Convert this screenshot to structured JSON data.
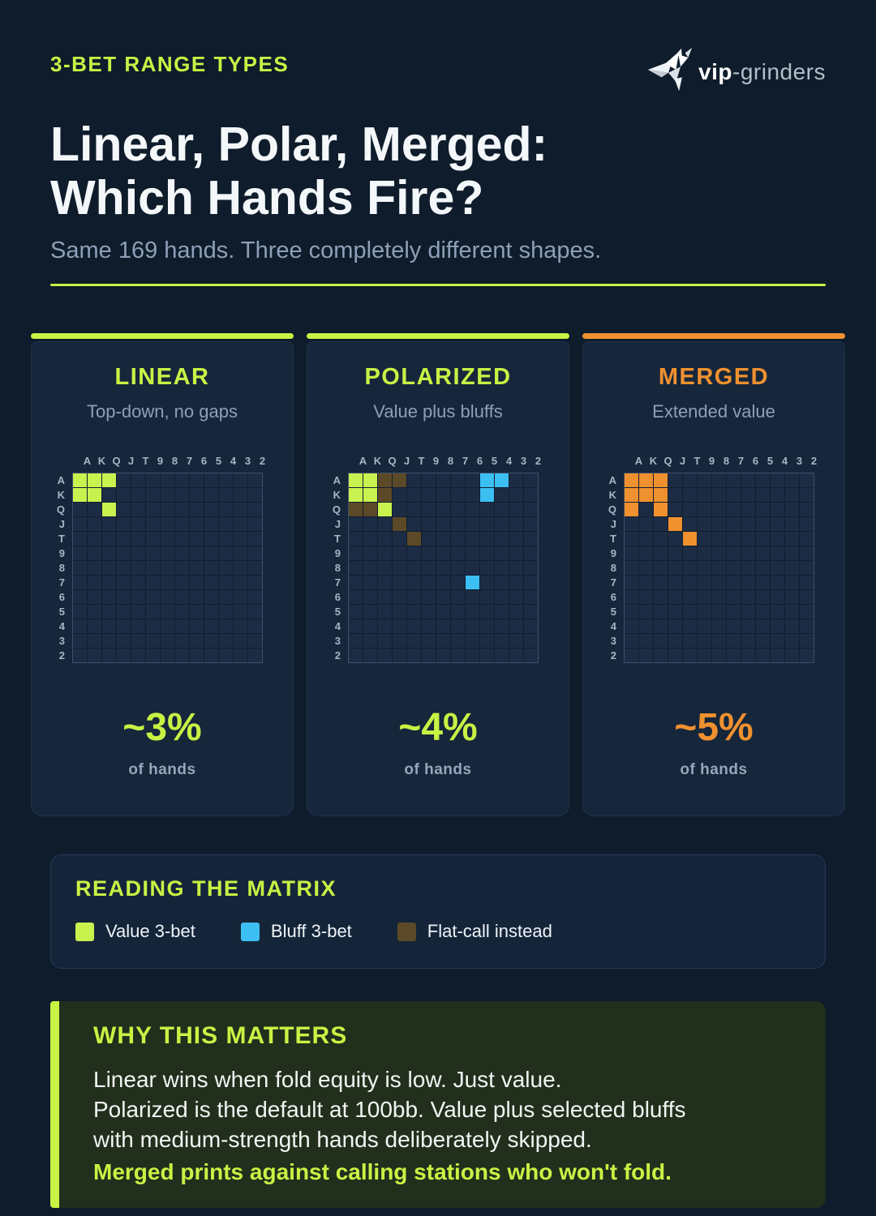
{
  "header": {
    "eyebrow": "3-BET RANGE TYPES",
    "title_line1": "Linear, Polar, Merged:",
    "title_line2": "Which Hands Fire?",
    "subtitle": "Same 169 hands. Three completely different shapes.",
    "logo_bold": "vip",
    "logo_light": "-grinders"
  },
  "colors": {
    "background": "#0e1c2b",
    "card_background": "#16263b",
    "accent_green": "#c8f244",
    "accent_orange": "#f0912f",
    "bluff_blue": "#3cc0f3",
    "call_brown": "#5c4927",
    "empty_cell": "#1d2c45",
    "subtitle_gray": "#8da0b6",
    "why_background": "#212f1c"
  },
  "ranks": [
    "A",
    "K",
    "Q",
    "J",
    "T",
    "9",
    "8",
    "7",
    "6",
    "5",
    "4",
    "3",
    "2"
  ],
  "cards": [
    {
      "title": "LINEAR",
      "subtitle": "Top-down, no gaps",
      "accent": "green",
      "pct": "~3%",
      "pct_label": "of hands"
    },
    {
      "title": "POLARIZED",
      "subtitle": "Value plus bluffs",
      "accent": "green",
      "pct": "~4%",
      "pct_label": "of hands"
    },
    {
      "title": "MERGED",
      "subtitle": "Extended value",
      "accent": "orange",
      "pct": "~5%",
      "pct_label": "of hands"
    }
  ],
  "chart_data": [
    {
      "type": "heatmap",
      "title": "LINEAR",
      "subtitle": "Top-down, no gaps",
      "rows": [
        "A",
        "K",
        "Q",
        "J",
        "T",
        "9",
        "8",
        "7",
        "6",
        "5",
        "4",
        "3",
        "2"
      ],
      "cols": [
        "A",
        "K",
        "Q",
        "J",
        "T",
        "9",
        "8",
        "7",
        "6",
        "5",
        "4",
        "3",
        "2"
      ],
      "annotation": "~3% of hands",
      "cells": [
        {
          "r": 0,
          "c": 0,
          "hand": "AA",
          "cat": "value"
        },
        {
          "r": 0,
          "c": 1,
          "hand": "AKs",
          "cat": "value"
        },
        {
          "r": 0,
          "c": 2,
          "hand": "AQs",
          "cat": "value"
        },
        {
          "r": 1,
          "c": 0,
          "hand": "AKo",
          "cat": "value"
        },
        {
          "r": 1,
          "c": 1,
          "hand": "KK",
          "cat": "value"
        },
        {
          "r": 2,
          "c": 2,
          "hand": "QQ",
          "cat": "value"
        }
      ]
    },
    {
      "type": "heatmap",
      "title": "POLARIZED",
      "subtitle": "Value plus bluffs",
      "rows": [
        "A",
        "K",
        "Q",
        "J",
        "T",
        "9",
        "8",
        "7",
        "6",
        "5",
        "4",
        "3",
        "2"
      ],
      "cols": [
        "A",
        "K",
        "Q",
        "J",
        "T",
        "9",
        "8",
        "7",
        "6",
        "5",
        "4",
        "3",
        "2"
      ],
      "annotation": "~4% of hands",
      "cells": [
        {
          "r": 0,
          "c": 0,
          "hand": "AA",
          "cat": "value"
        },
        {
          "r": 0,
          "c": 1,
          "hand": "AKs",
          "cat": "value"
        },
        {
          "r": 1,
          "c": 0,
          "hand": "AKo",
          "cat": "value"
        },
        {
          "r": 1,
          "c": 1,
          "hand": "KK",
          "cat": "value"
        },
        {
          "r": 2,
          "c": 2,
          "hand": "QQ",
          "cat": "value"
        },
        {
          "r": 0,
          "c": 2,
          "hand": "AQs",
          "cat": "call"
        },
        {
          "r": 0,
          "c": 3,
          "hand": "AJs",
          "cat": "call"
        },
        {
          "r": 1,
          "c": 2,
          "hand": "KQs",
          "cat": "call"
        },
        {
          "r": 2,
          "c": 0,
          "hand": "AQo",
          "cat": "call"
        },
        {
          "r": 2,
          "c": 1,
          "hand": "KQo",
          "cat": "call"
        },
        {
          "r": 3,
          "c": 3,
          "hand": "JJ",
          "cat": "call"
        },
        {
          "r": 4,
          "c": 4,
          "hand": "TT",
          "cat": "call"
        },
        {
          "r": 0,
          "c": 9,
          "hand": "A5s",
          "cat": "bluff"
        },
        {
          "r": 0,
          "c": 10,
          "hand": "A4s",
          "cat": "bluff"
        },
        {
          "r": 1,
          "c": 9,
          "hand": "K5s",
          "cat": "bluff"
        },
        {
          "r": 7,
          "c": 8,
          "hand": "76s",
          "cat": "bluff"
        }
      ]
    },
    {
      "type": "heatmap",
      "title": "MERGED",
      "subtitle": "Extended value",
      "rows": [
        "A",
        "K",
        "Q",
        "J",
        "T",
        "9",
        "8",
        "7",
        "6",
        "5",
        "4",
        "3",
        "2"
      ],
      "cols": [
        "A",
        "K",
        "Q",
        "J",
        "T",
        "9",
        "8",
        "7",
        "6",
        "5",
        "4",
        "3",
        "2"
      ],
      "annotation": "~5% of hands",
      "cells": [
        {
          "r": 0,
          "c": 0,
          "hand": "AA",
          "cat": "merged"
        },
        {
          "r": 0,
          "c": 1,
          "hand": "AKs",
          "cat": "merged"
        },
        {
          "r": 0,
          "c": 2,
          "hand": "AQs",
          "cat": "merged"
        },
        {
          "r": 1,
          "c": 0,
          "hand": "AKo",
          "cat": "merged"
        },
        {
          "r": 1,
          "c": 1,
          "hand": "KK",
          "cat": "merged"
        },
        {
          "r": 1,
          "c": 2,
          "hand": "KQs",
          "cat": "merged"
        },
        {
          "r": 2,
          "c": 0,
          "hand": "AQo",
          "cat": "merged"
        },
        {
          "r": 2,
          "c": 2,
          "hand": "QQ",
          "cat": "merged"
        },
        {
          "r": 3,
          "c": 3,
          "hand": "JJ",
          "cat": "merged"
        },
        {
          "r": 4,
          "c": 4,
          "hand": "TT",
          "cat": "merged"
        }
      ]
    }
  ],
  "legend": {
    "title": "READING THE MATRIX",
    "items": [
      {
        "label": "Value 3-bet",
        "cat": "value",
        "color": "#c9f24f"
      },
      {
        "label": "Bluff 3-bet",
        "cat": "bluff",
        "color": "#3cc0f3"
      },
      {
        "label": "Flat-call instead",
        "cat": "call",
        "color": "#5c4927"
      }
    ]
  },
  "why": {
    "title": "WHY THIS MATTERS",
    "lines": [
      "Linear wins when fold equity is low. Just value.",
      "Polarized is the default at 100bb. Value plus selected bluffs",
      "with medium-strength hands deliberately skipped."
    ],
    "highlight": "Merged prints against calling stations who won't fold."
  }
}
